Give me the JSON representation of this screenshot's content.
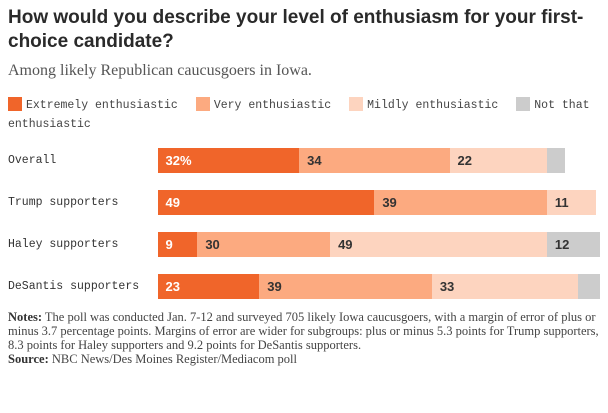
{
  "chart_data": {
    "type": "bar",
    "orientation": "horizontal-stacked",
    "title": "How would you describe your level of enthusiasm for your first-choice candidate?",
    "subtitle": "Among likely Republican caucusgoers in Iowa.",
    "categories": [
      "Overall",
      "Trump supporters",
      "Haley supporters",
      "DeSantis supporters"
    ],
    "series": [
      {
        "name": "Extremely enthusiastic",
        "color": "#f0652a",
        "values": [
          32,
          49,
          9,
          23
        ]
      },
      {
        "name": "Very enthusiastic",
        "color": "#fcaa80",
        "values": [
          34,
          39,
          30,
          39
        ]
      },
      {
        "name": "Mildly enthusiastic",
        "color": "#fdd4bf",
        "values": [
          22,
          11,
          49,
          33
        ]
      },
      {
        "name": "Not that enthusiastic",
        "color": "#cccccc",
        "values": [
          4,
          0,
          12,
          5
        ]
      }
    ],
    "labels": [
      [
        "32%",
        "34",
        "22",
        ""
      ],
      [
        "49",
        "39",
        "11",
        ""
      ],
      [
        "9",
        "30",
        "49",
        "12"
      ],
      [
        "23",
        "39",
        "33",
        ""
      ]
    ],
    "xlim": [
      0,
      100
    ],
    "legend": "top"
  },
  "notes_label": "Notes:",
  "notes": "The poll was conducted Jan. 7-12 and surveyed 705 likely Iowa caucusgoers, with a margin of error of plus or minus 3.7 percentage points. Margins of error are wider for subgroups: plus or minus 5.3 points for Trump supporters, 8.3 points for Haley supporters and 9.2 points for DeSantis supporters.",
  "source_label": "Source:",
  "source": "NBC News/Des Moines Register/Mediacom poll"
}
